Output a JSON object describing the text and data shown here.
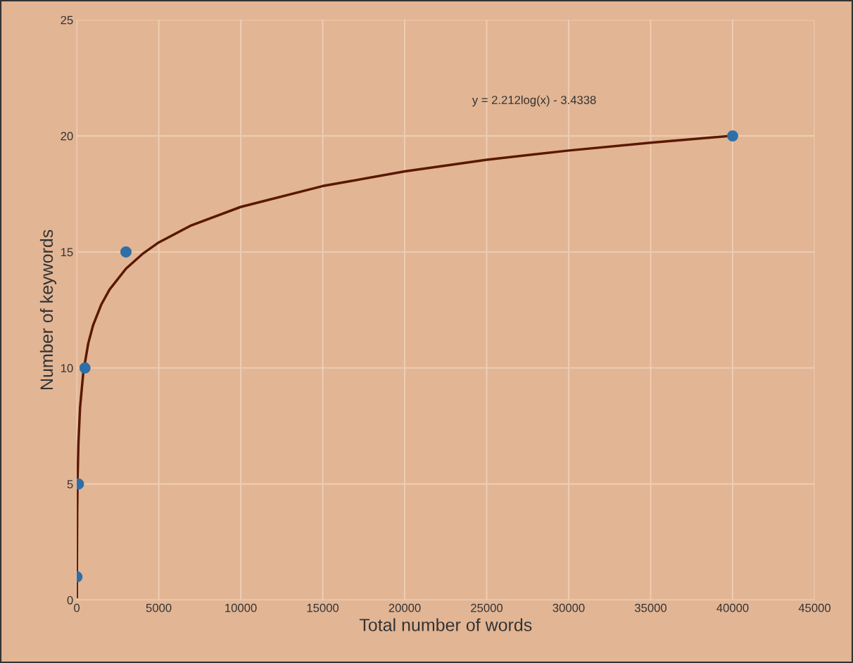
{
  "chart_data": {
    "type": "scatter",
    "xlabel": "Total number of words",
    "ylabel": "Number of keywords",
    "annotations": [
      "y = 2.212log(x) - 3.4338"
    ],
    "series": [
      {
        "marker": "circle",
        "color": "#2e6fa8",
        "x": [
          10,
          100,
          500,
          3000,
          40000
        ],
        "values": [
          1,
          5,
          10,
          15,
          20
        ]
      },
      {
        "type": "line",
        "color": "#5a1800",
        "x": [
          5,
          10,
          25,
          50,
          100,
          200,
          400,
          700,
          1000,
          1500,
          2000,
          3000,
          4000,
          5000,
          7000,
          10000,
          15000,
          20000,
          25000,
          30000,
          35000,
          40000
        ],
        "values": [
          0.13,
          1.66,
          3.69,
          5.22,
          6.75,
          8.29,
          9.82,
          11.06,
          11.85,
          12.74,
          13.38,
          14.28,
          14.91,
          15.41,
          16.15,
          16.94,
          17.84,
          18.47,
          18.97,
          19.37,
          19.71,
          20.01
        ]
      }
    ],
    "xlim": [
      0,
      45000
    ],
    "xticks": [
      0,
      5000,
      10000,
      15000,
      20000,
      25000,
      30000,
      35000,
      40000,
      45000
    ],
    "ylim": [
      0,
      25
    ],
    "yticks": [
      0,
      5,
      10,
      15,
      20,
      25
    ],
    "grid": true,
    "line_style": "solid"
  }
}
